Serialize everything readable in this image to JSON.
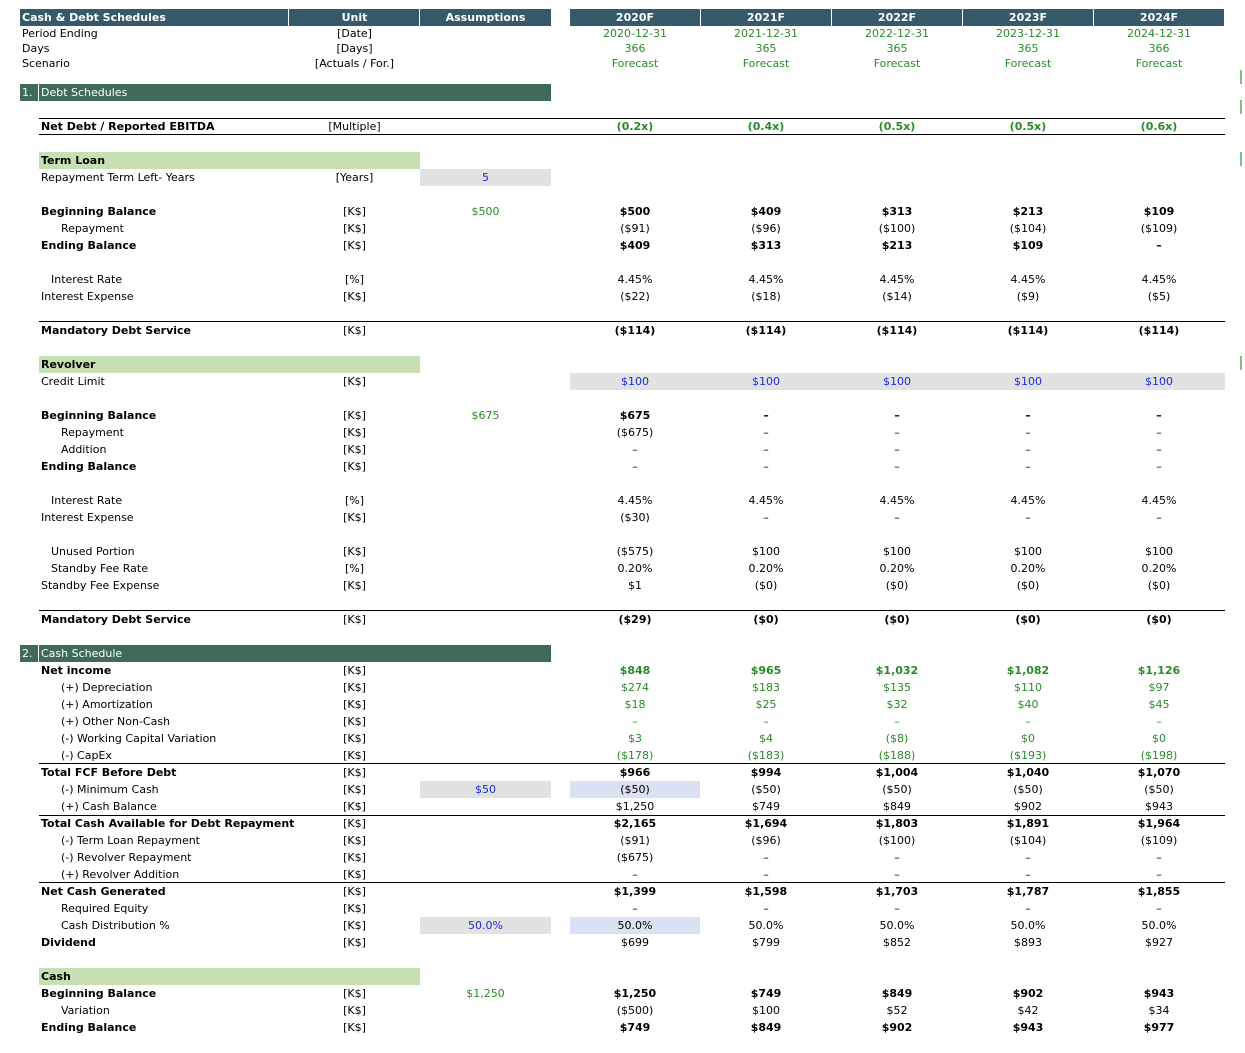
{
  "header": {
    "title": "Cash & Debt Schedules",
    "unit": "Unit",
    "assumptions": "Assumptions",
    "years": [
      "2020F",
      "2021F",
      "2022F",
      "2023F",
      "2024F"
    ]
  },
  "info_rows": [
    {
      "label": "Period Ending",
      "unit": "[Date]",
      "values": [
        "2020-12-31",
        "2021-12-31",
        "2022-12-31",
        "2023-12-31",
        "2024-12-31"
      ]
    },
    {
      "label": "Days",
      "unit": "[Days]",
      "values": [
        "366",
        "365",
        "365",
        "365",
        "366"
      ]
    },
    {
      "label": "Scenario",
      "unit": "[Actuals / For.]",
      "values": [
        "Forecast",
        "Forecast",
        "Forecast",
        "Forecast",
        "Forecast"
      ]
    }
  ],
  "sections": [
    {
      "num": "1.",
      "title": "Debt Schedules"
    },
    {
      "num": "2.",
      "title": "Cash Schedule"
    }
  ],
  "subsections": [
    "Term Loan",
    "Revolver",
    "Cash"
  ],
  "rows": [
    {
      "label": "Net Debt / Reported EBITDA",
      "unit": "[Multiple]",
      "assumption": "",
      "values": [
        "(0.2x)",
        "(0.4x)",
        "(0.5x)",
        "(0.5x)",
        "(0.6x)"
      ]
    },
    {
      "label": "Repayment Term Left- Years",
      "unit": "[Years]",
      "assumption": "5",
      "values": []
    },
    {
      "label": "Beginning Balance",
      "unit": "[K$]",
      "assumption": "$500",
      "values": [
        "$500",
        "$409",
        "$313",
        "$213",
        "$109"
      ]
    },
    {
      "label": "Repayment",
      "unit": "[K$]",
      "assumption": "",
      "values": [
        "($91)",
        "($96)",
        "($100)",
        "($104)",
        "($109)"
      ]
    },
    {
      "label": "Ending Balance",
      "unit": "[K$]",
      "assumption": "",
      "values": [
        "$409",
        "$313",
        "$213",
        "$109",
        "–"
      ]
    },
    {
      "label": "Interest Rate",
      "unit": "[%]",
      "assumption": "",
      "values": [
        "4.45%",
        "4.45%",
        "4.45%",
        "4.45%",
        "4.45%"
      ]
    },
    {
      "label": "Interest Expense",
      "unit": "[K$]",
      "assumption": "",
      "values": [
        "($22)",
        "($18)",
        "($14)",
        "($9)",
        "($5)"
      ]
    },
    {
      "label": "Mandatory Debt Service",
      "unit": "[K$]",
      "assumption": "",
      "values": [
        "($114)",
        "($114)",
        "($114)",
        "($114)",
        "($114)"
      ]
    },
    {
      "label": "Credit Limit",
      "unit": "[K$]",
      "assumption": "",
      "values": [
        "$100",
        "$100",
        "$100",
        "$100",
        "$100"
      ]
    },
    {
      "label": "Beginning Balance",
      "unit": "[K$]",
      "assumption": "$675",
      "values": [
        "$675",
        "–",
        "–",
        "–",
        "–"
      ]
    },
    {
      "label": "Repayment",
      "unit": "[K$]",
      "assumption": "",
      "values": [
        "($675)",
        "–",
        "–",
        "–",
        "–"
      ]
    },
    {
      "label": "Addition",
      "unit": "[K$]",
      "assumption": "",
      "values": [
        "–",
        "–",
        "–",
        "–",
        "–"
      ]
    },
    {
      "label": "Ending Balance",
      "unit": "[K$]",
      "assumption": "",
      "values": [
        "–",
        "–",
        "–",
        "–",
        "–"
      ]
    },
    {
      "label": "Interest Rate",
      "unit": "[%]",
      "assumption": "",
      "values": [
        "4.45%",
        "4.45%",
        "4.45%",
        "4.45%",
        "4.45%"
      ]
    },
    {
      "label": "Interest Expense",
      "unit": "[K$]",
      "assumption": "",
      "values": [
        "($30)",
        "–",
        "–",
        "–",
        "–"
      ]
    },
    {
      "label": "Unused Portion",
      "unit": "[K$]",
      "assumption": "",
      "values": [
        "($575)",
        "$100",
        "$100",
        "$100",
        "$100"
      ]
    },
    {
      "label": "Standby Fee Rate",
      "unit": "[%]",
      "assumption": "",
      "values": [
        "0.20%",
        "0.20%",
        "0.20%",
        "0.20%",
        "0.20%"
      ]
    },
    {
      "label": "Standby Fee Expense",
      "unit": "[K$]",
      "assumption": "",
      "values": [
        "$1",
        "($0)",
        "($0)",
        "($0)",
        "($0)"
      ]
    },
    {
      "label": "Mandatory Debt Service",
      "unit": "[K$]",
      "assumption": "",
      "values": [
        "($29)",
        "($0)",
        "($0)",
        "($0)",
        "($0)"
      ]
    },
    {
      "label": "Net income",
      "unit": "[K$]",
      "assumption": "",
      "values": [
        "$848",
        "$965",
        "$1,032",
        "$1,082",
        "$1,126"
      ]
    },
    {
      "label": "(+) Depreciation",
      "unit": "[K$]",
      "assumption": "",
      "values": [
        "$274",
        "$183",
        "$135",
        "$110",
        "$97"
      ]
    },
    {
      "label": "(+) Amortization",
      "unit": "[K$]",
      "assumption": "",
      "values": [
        "$18",
        "$25",
        "$32",
        "$40",
        "$45"
      ]
    },
    {
      "label": "(+) Other Non-Cash",
      "unit": "[K$]",
      "assumption": "",
      "values": [
        "–",
        "–",
        "–",
        "–",
        "–"
      ]
    },
    {
      "label": "(-) Working Capital Variation",
      "unit": "[K$]",
      "assumption": "",
      "values": [
        "$3",
        "$4",
        "($8)",
        "$0",
        "$0"
      ]
    },
    {
      "label": "(-) CapEx",
      "unit": "[K$]",
      "assumption": "",
      "values": [
        "($178)",
        "($183)",
        "($188)",
        "($193)",
        "($198)"
      ]
    },
    {
      "label": "Total FCF Before Debt",
      "unit": "[K$]",
      "assumption": "",
      "values": [
        "$966",
        "$994",
        "$1,004",
        "$1,040",
        "$1,070"
      ]
    },
    {
      "label": "(-) Minimum Cash",
      "unit": "[K$]",
      "assumption": "$50",
      "values": [
        "($50)",
        "($50)",
        "($50)",
        "($50)",
        "($50)"
      ]
    },
    {
      "label": "(+) Cash Balance",
      "unit": "[K$]",
      "assumption": "",
      "values": [
        "$1,250",
        "$749",
        "$849",
        "$902",
        "$943"
      ]
    },
    {
      "label": "Total Cash Available for Debt Repayment",
      "unit": "[K$]",
      "assumption": "",
      "values": [
        "$2,165",
        "$1,694",
        "$1,803",
        "$1,891",
        "$1,964"
      ]
    },
    {
      "label": "(-) Term Loan Repayment",
      "unit": "[K$]",
      "assumption": "",
      "values": [
        "($91)",
        "($96)",
        "($100)",
        "($104)",
        "($109)"
      ]
    },
    {
      "label": "(-) Revolver Repayment",
      "unit": "[K$]",
      "assumption": "",
      "values": [
        "($675)",
        "–",
        "–",
        "–",
        "–"
      ]
    },
    {
      "label": "(+) Revolver Addition",
      "unit": "[K$]",
      "assumption": "",
      "values": [
        "–",
        "–",
        "–",
        "–",
        "–"
      ]
    },
    {
      "label": "Net Cash Generated",
      "unit": "[K$]",
      "assumption": "",
      "values": [
        "$1,399",
        "$1,598",
        "$1,703",
        "$1,787",
        "$1,855"
      ]
    },
    {
      "label": "Required Equity",
      "unit": "[K$]",
      "assumption": "",
      "values": [
        "–",
        "–",
        "–",
        "–",
        "–"
      ]
    },
    {
      "label": "Cash Distribution %",
      "unit": "[K$]",
      "assumption": "50.0%",
      "values": [
        "50.0%",
        "50.0%",
        "50.0%",
        "50.0%",
        "50.0%"
      ]
    },
    {
      "label": "Dividend",
      "unit": "[K$]",
      "assumption": "",
      "values": [
        "$699",
        "$799",
        "$852",
        "$893",
        "$927"
      ]
    },
    {
      "label": "Beginning Balance",
      "unit": "[K$]",
      "assumption": "$1,250",
      "values": [
        "$1,250",
        "$749",
        "$849",
        "$902",
        "$943"
      ]
    },
    {
      "label": "Variation",
      "unit": "[K$]",
      "assumption": "",
      "values": [
        "($500)",
        "$100",
        "$52",
        "$42",
        "$34"
      ]
    },
    {
      "label": "Ending Balance",
      "unit": "[K$]",
      "assumption": "",
      "values": [
        "$749",
        "$849",
        "$902",
        "$943",
        "$977"
      ]
    }
  ],
  "colors": {
    "header_bg": "#375a6b",
    "section_bg": "#3f6b57",
    "subsection_bg": "#c6e0b4",
    "input_gray": "#e2e2e2",
    "input_lavender": "#d9e1f2",
    "text_green": "#2a8a2a",
    "text_blue": "#1c2bd6"
  }
}
